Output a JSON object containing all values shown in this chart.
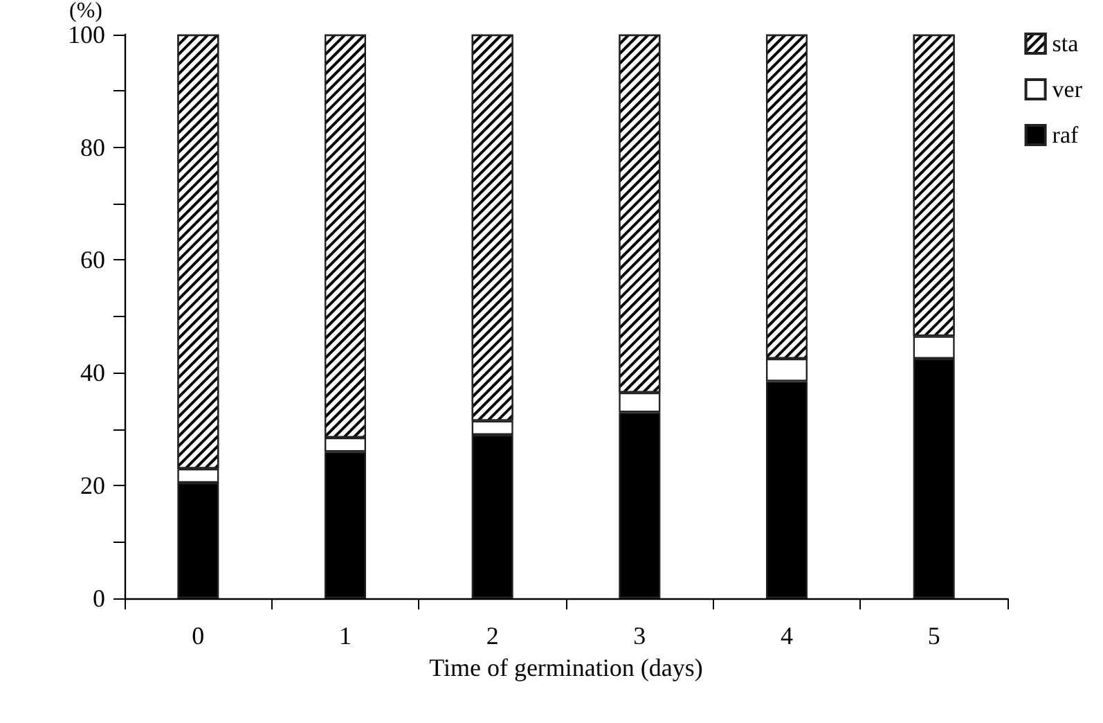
{
  "chart_data": {
    "type": "bar",
    "stacked": true,
    "xlabel": "Time of germination (days)",
    "ylabel": "(%)",
    "categories": [
      "0",
      "1",
      "2",
      "3",
      "4",
      "5"
    ],
    "series": [
      {
        "name": "raf",
        "color": "#000000",
        "values": [
          20.5,
          26,
          29,
          33,
          38.5,
          42.5
        ]
      },
      {
        "name": "ver",
        "color": "#ffffff",
        "values": [
          2.5,
          2.5,
          2.5,
          3.5,
          4,
          4
        ]
      },
      {
        "name": "sta",
        "color": "#000000",
        "values": [
          77,
          71.5,
          68.5,
          63.5,
          57.5,
          53.5
        ]
      }
    ],
    "ylim": [
      0,
      100
    ],
    "yticks": [
      0,
      {
        "value": 10,
        "label": null
      },
      20,
      {
        "value": 30,
        "label": null
      },
      40,
      {
        "value": 50,
        "label": null
      },
      60,
      {
        "value": 70,
        "label": null
      },
      80,
      {
        "value": 90,
        "label": null
      },
      100
    ],
    "grid": false,
    "legend": "top right"
  }
}
